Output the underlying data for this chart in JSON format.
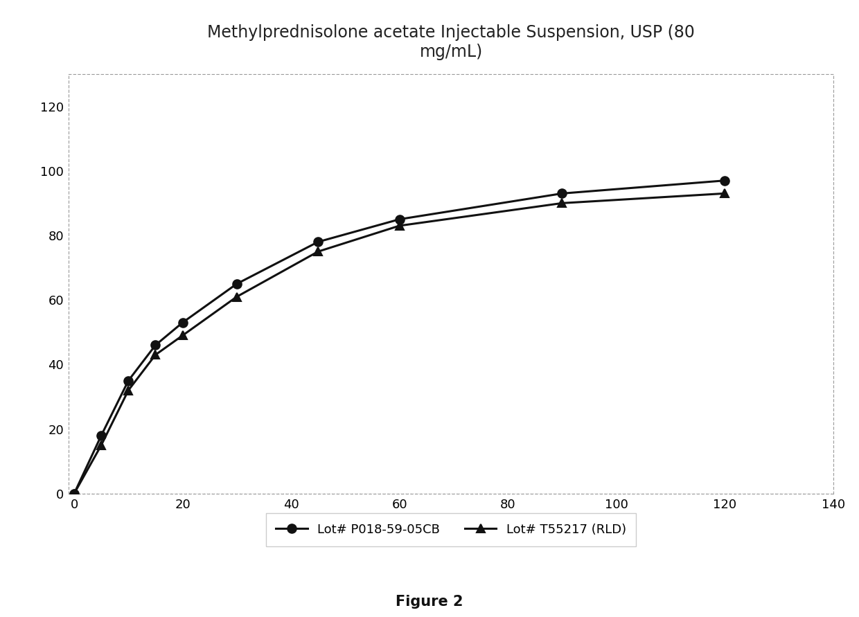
{
  "title": "Methylprednisolone acetate Injectable Suspension, USP (80\nmg/mL)",
  "figure_caption": "Figure 2",
  "series": [
    {
      "label": "Lot# P018-59-05CB",
      "x": [
        0,
        5,
        10,
        15,
        20,
        30,
        45,
        60,
        90,
        120
      ],
      "y": [
        0,
        18,
        35,
        46,
        53,
        65,
        78,
        85,
        93,
        97
      ],
      "marker": "o",
      "color": "#111111",
      "linewidth": 2.2,
      "markersize": 9
    },
    {
      "label": "Lot# T55217 (RLD)",
      "x": [
        0,
        5,
        10,
        15,
        20,
        30,
        45,
        60,
        90,
        120
      ],
      "y": [
        0,
        15,
        32,
        43,
        49,
        61,
        75,
        83,
        90,
        93
      ],
      "marker": "^",
      "color": "#111111",
      "linewidth": 2.2,
      "markersize": 9
    }
  ],
  "xlim": [
    -1,
    140
  ],
  "ylim": [
    0,
    130
  ],
  "xticks": [
    0,
    20,
    40,
    60,
    80,
    100,
    120,
    140
  ],
  "yticks": [
    0,
    20,
    40,
    60,
    80,
    100,
    120
  ],
  "background_color": "#ffffff",
  "border_color": "#aaaaaa",
  "title_fontsize": 17,
  "axis_fontsize": 13,
  "legend_fontsize": 13,
  "caption_fontsize": 15
}
